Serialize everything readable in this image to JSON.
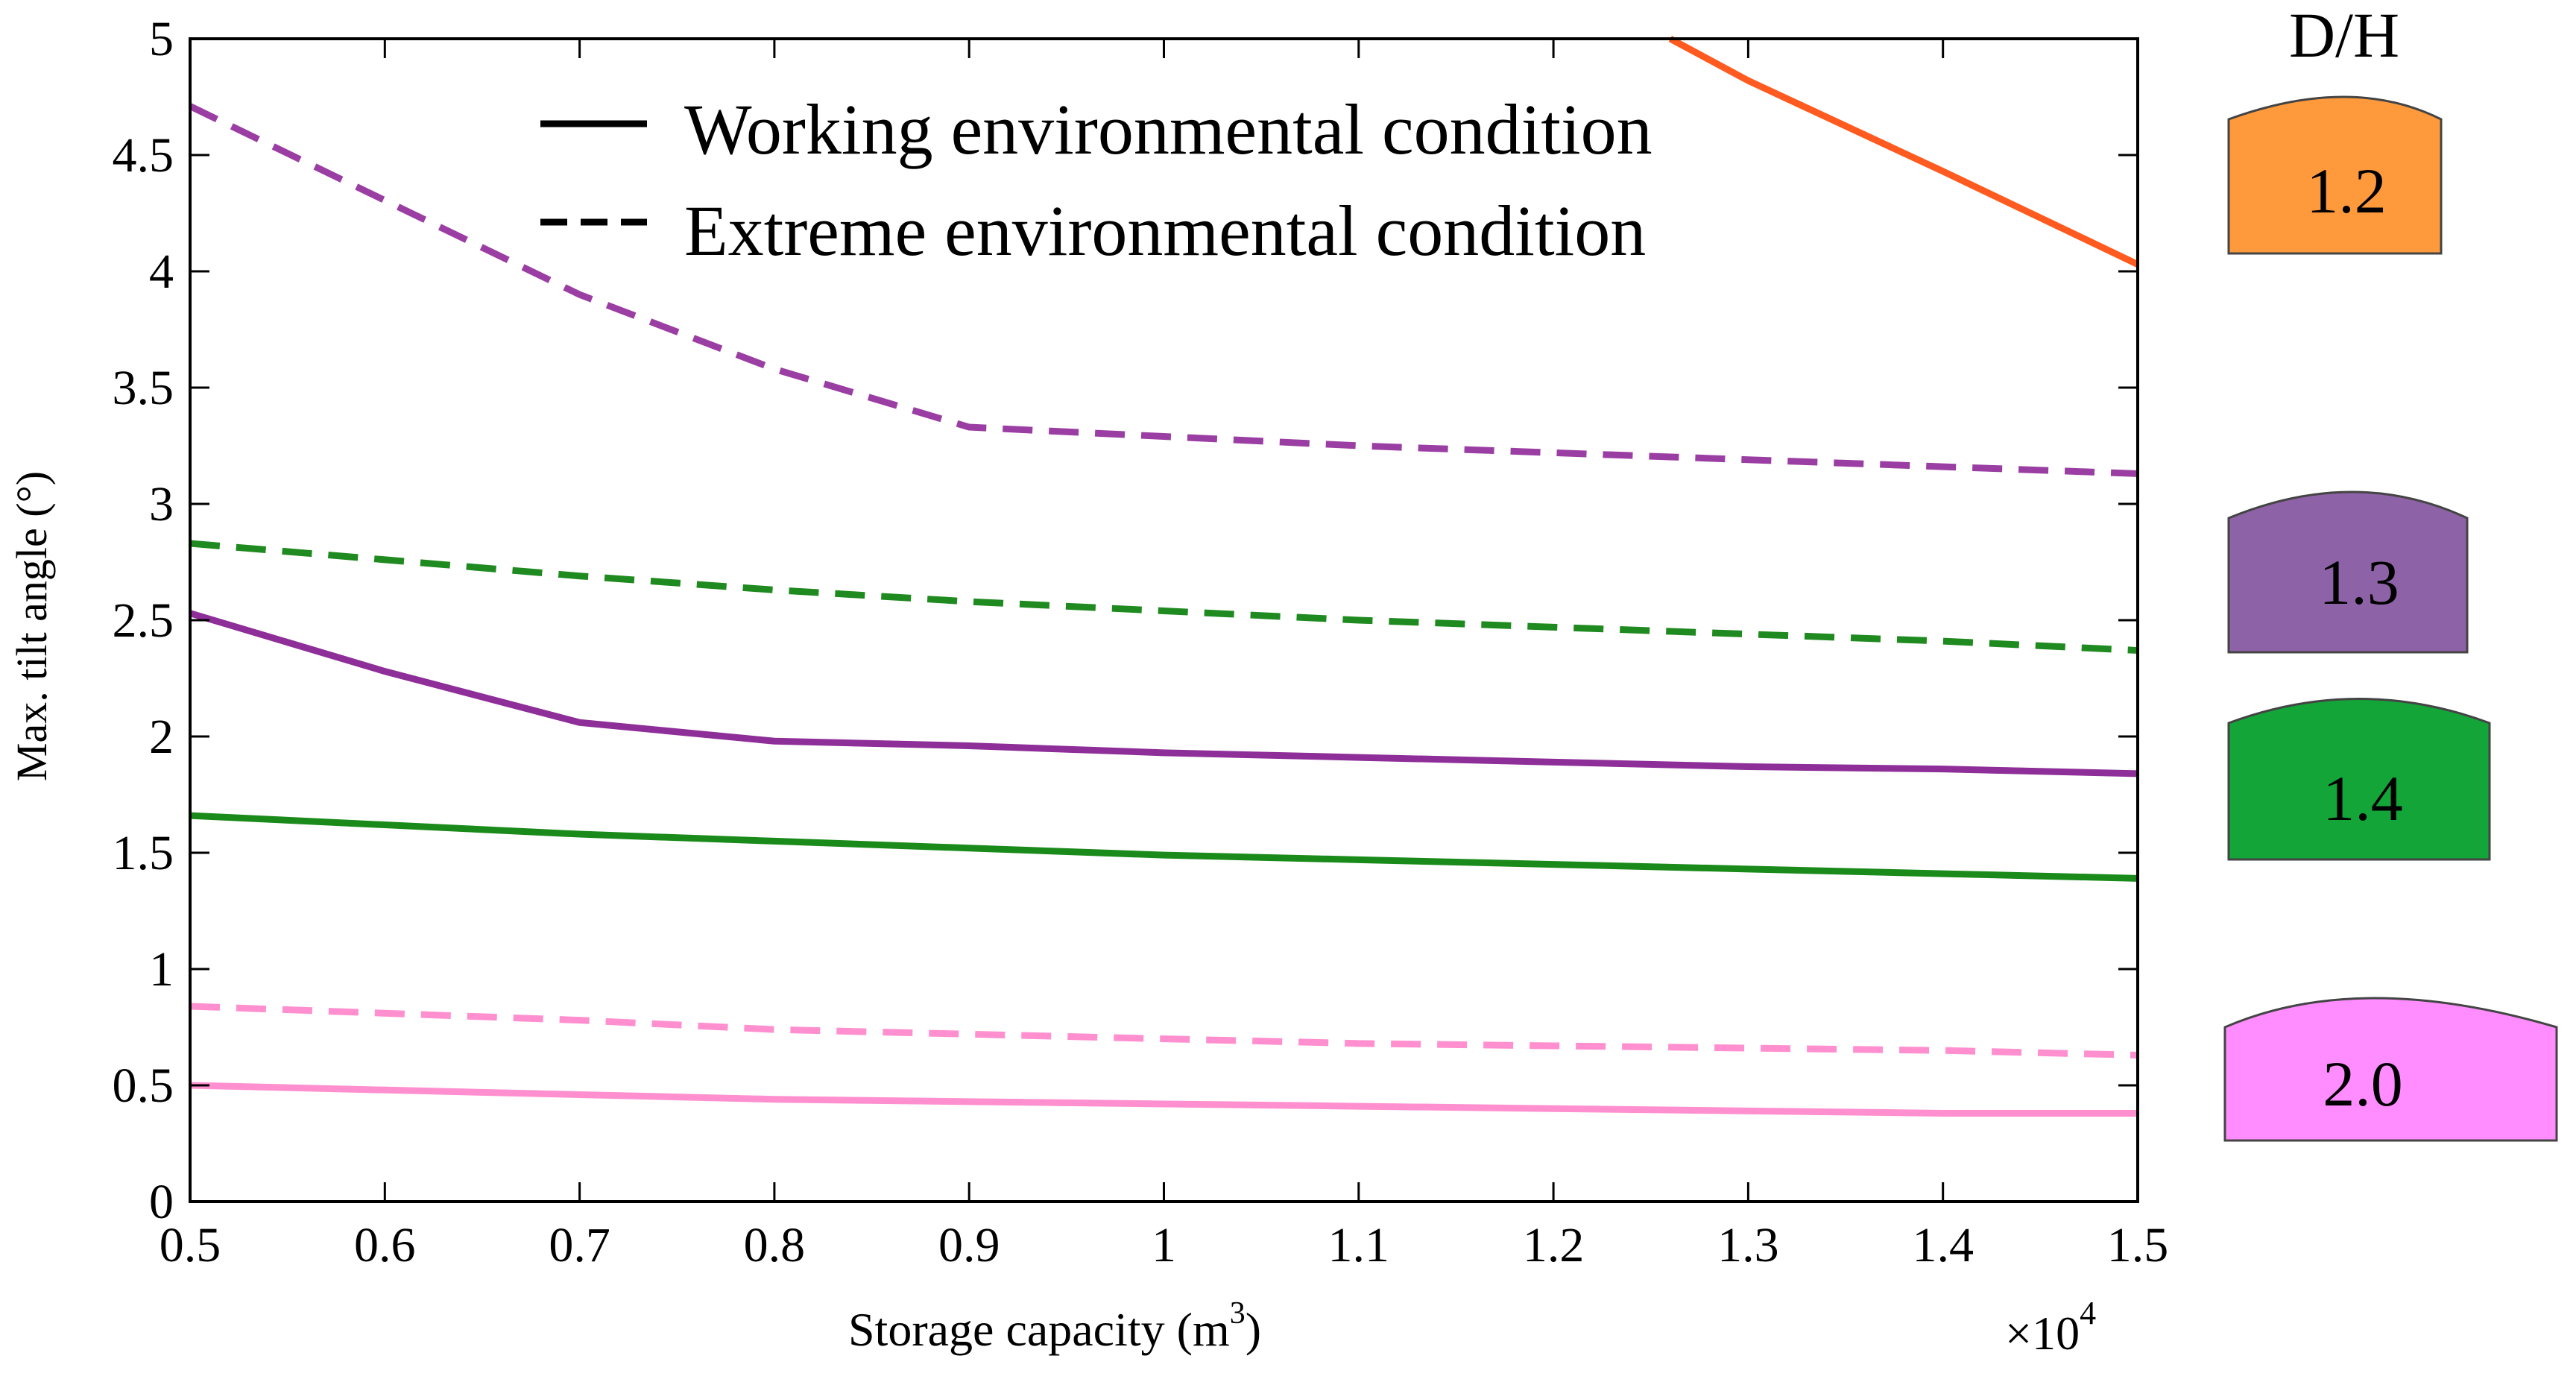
{
  "chart_data": {
    "type": "line",
    "title": "",
    "xlabel": "Storage capacity (m",
    "xlabel_superscript": "3",
    "xlabel_suffix": ")",
    "x_multiplier_base": "×10",
    "x_multiplier_exp": "4",
    "ylabel": "Max. tilt angle (°)",
    "xlim": [
      0.5,
      1.5
    ],
    "ylim": [
      0,
      5
    ],
    "x_ticks": [
      "0.5",
      "0.6",
      "0.7",
      "0.8",
      "0.9",
      "1",
      "1.1",
      "1.2",
      "1.3",
      "1.4",
      "1.5"
    ],
    "y_ticks": [
      "0",
      "0.5",
      "1",
      "1.5",
      "2",
      "2.5",
      "3",
      "3.5",
      "4",
      "4.5",
      "5"
    ],
    "legend": {
      "position": "top-center",
      "entries": [
        {
          "label": "Working environmental condition",
          "style": "solid"
        },
        {
          "label": "Extreme environmental condition",
          "style": "dashed"
        }
      ]
    },
    "dh_title": "D/H",
    "series": [
      {
        "name": "D/H 1.2 working",
        "dh": "1.2",
        "style": "solid",
        "color": "#ff5a1f",
        "x": [
          1.26,
          1.3,
          1.4,
          1.5
        ],
        "y": [
          5.0,
          4.82,
          4.43,
          4.03
        ]
      },
      {
        "name": "D/H 1.3 extreme",
        "dh": "1.3",
        "style": "dashed",
        "color": "#9b3ea3",
        "x": [
          0.5,
          0.7,
          0.8,
          0.9,
          1.0,
          1.1,
          1.2,
          1.3,
          1.4,
          1.5
        ],
        "y": [
          4.71,
          3.9,
          3.58,
          3.33,
          3.29,
          3.25,
          3.22,
          3.19,
          3.16,
          3.13
        ]
      },
      {
        "name": "D/H 1.4 extreme",
        "dh": "1.4",
        "style": "dashed",
        "color": "#1f8a1f",
        "x": [
          0.5,
          0.7,
          0.8,
          0.9,
          1.0,
          1.1,
          1.2,
          1.3,
          1.4,
          1.5
        ],
        "y": [
          2.83,
          2.69,
          2.63,
          2.58,
          2.54,
          2.5,
          2.47,
          2.44,
          2.41,
          2.37
        ]
      },
      {
        "name": "D/H 1.3 working",
        "dh": "1.3",
        "style": "solid",
        "color": "#8e2e98",
        "x": [
          0.5,
          0.6,
          0.7,
          0.8,
          0.9,
          1.0,
          1.1,
          1.2,
          1.3,
          1.4,
          1.5
        ],
        "y": [
          2.53,
          2.28,
          2.06,
          1.98,
          1.96,
          1.93,
          1.91,
          1.89,
          1.87,
          1.86,
          1.84
        ]
      },
      {
        "name": "D/H 1.4 working",
        "dh": "1.4",
        "style": "solid",
        "color": "#1a8a1a",
        "x": [
          0.5,
          0.7,
          0.8,
          0.9,
          1.0,
          1.1,
          1.2,
          1.3,
          1.4,
          1.5
        ],
        "y": [
          1.66,
          1.58,
          1.55,
          1.52,
          1.49,
          1.47,
          1.45,
          1.43,
          1.41,
          1.39
        ]
      },
      {
        "name": "D/H 2.0 extreme",
        "dh": "2.0",
        "style": "dashed",
        "color": "#ff8fcf",
        "x": [
          0.5,
          0.7,
          0.8,
          0.9,
          1.0,
          1.1,
          1.2,
          1.3,
          1.4,
          1.5
        ],
        "y": [
          0.84,
          0.78,
          0.74,
          0.72,
          0.7,
          0.68,
          0.67,
          0.66,
          0.65,
          0.63
        ]
      },
      {
        "name": "D/H 2.0 working",
        "dh": "2.0",
        "style": "solid",
        "color": "#ff8fcf",
        "x": [
          0.5,
          0.7,
          0.8,
          0.9,
          1.0,
          1.1,
          1.2,
          1.3,
          1.4,
          1.5
        ],
        "y": [
          0.5,
          0.46,
          0.44,
          0.43,
          0.42,
          0.41,
          0.4,
          0.39,
          0.38,
          0.38
        ]
      }
    ],
    "tanks": [
      {
        "label": "1.2",
        "fill": "#ff9a3c"
      },
      {
        "label": "1.3",
        "fill": "#8e62a6"
      },
      {
        "label": "1.4",
        "fill": "#13a538"
      },
      {
        "label": "2.0",
        "fill": "#ff8dff"
      }
    ]
  }
}
